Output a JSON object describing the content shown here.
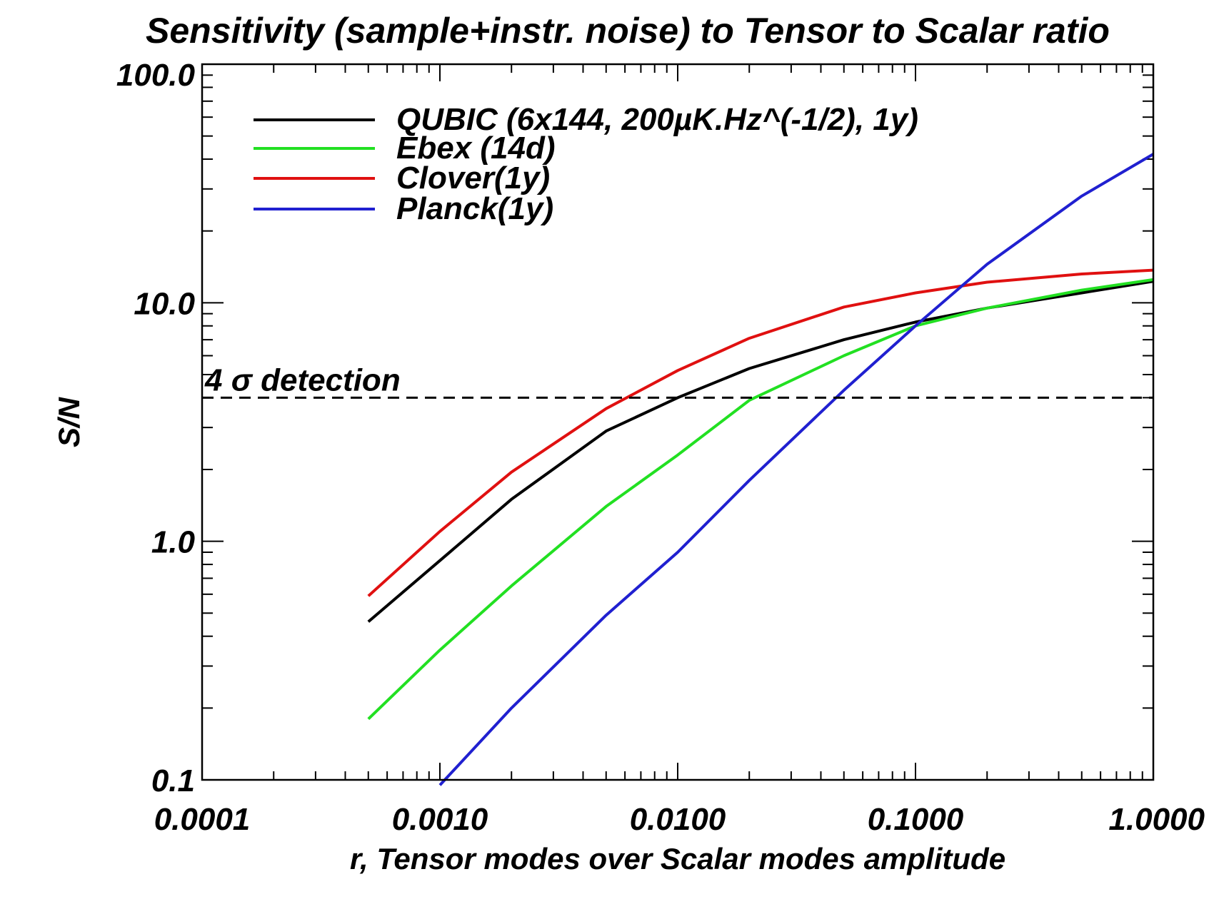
{
  "chart_data": {
    "type": "line",
    "title": "Sensitivity (sample+instr. noise) to Tensor to Scalar ratio",
    "xlabel": "r, Tensor modes over Scalar modes amplitude",
    "ylabel": "S/N",
    "xscale": "log",
    "yscale": "log",
    "xlim": [
      0.0001,
      1.0
    ],
    "ylim": [
      0.1,
      100.0
    ],
    "x_ticks": [
      {
        "value": 0.0001,
        "label": "0.0001"
      },
      {
        "value": 0.001,
        "label": "0.0010"
      },
      {
        "value": 0.01,
        "label": "0.0100"
      },
      {
        "value": 0.1,
        "label": "0.1000"
      },
      {
        "value": 1.0,
        "label": "1.0000"
      }
    ],
    "y_ticks": [
      {
        "value": 0.1,
        "label": "0.1"
      },
      {
        "value": 1.0,
        "label": "1.0"
      },
      {
        "value": 10.0,
        "label": "10.0"
      },
      {
        "value": 100.0,
        "label": "100.0"
      }
    ],
    "legend_position": "top-left",
    "series": [
      {
        "name": "QUBIC (6x144, 200µK.Hz^(-1/2), 1y)",
        "color": "#000000",
        "x": [
          0.0005,
          0.001,
          0.002,
          0.005,
          0.01,
          0.02,
          0.05,
          0.1,
          0.2,
          0.5,
          1.0
        ],
        "y": [
          0.46,
          0.83,
          1.5,
          2.9,
          4.0,
          5.3,
          7.0,
          8.3,
          9.5,
          11.0,
          12.3
        ]
      },
      {
        "name": "Ebex (14d)",
        "color": "#22e022",
        "x": [
          0.0005,
          0.001,
          0.002,
          0.005,
          0.01,
          0.02,
          0.05,
          0.1,
          0.2,
          0.5,
          1.0
        ],
        "y": [
          0.18,
          0.35,
          0.65,
          1.4,
          2.3,
          3.9,
          6.0,
          8.0,
          9.5,
          11.3,
          12.5
        ]
      },
      {
        "name": "Clover(1y)",
        "color": "#e01010",
        "x": [
          0.0005,
          0.001,
          0.002,
          0.005,
          0.01,
          0.02,
          0.05,
          0.1,
          0.2,
          0.5,
          1.0
        ],
        "y": [
          0.59,
          1.1,
          1.95,
          3.6,
          5.2,
          7.1,
          9.6,
          11.0,
          12.2,
          13.2,
          13.7
        ]
      },
      {
        "name": "Planck(1y)",
        "color": "#2020d0",
        "x": [
          0.001,
          0.002,
          0.005,
          0.01,
          0.02,
          0.05,
          0.1,
          0.2,
          0.5,
          1.0
        ],
        "y": [
          0.095,
          0.2,
          0.49,
          0.9,
          1.8,
          4.3,
          8.0,
          14.5,
          28.0,
          42.0
        ]
      }
    ],
    "annotations": [
      {
        "type": "hline",
        "y": 4.0,
        "style": "dashed",
        "color": "#000000",
        "label": "4 σ detection"
      }
    ]
  }
}
